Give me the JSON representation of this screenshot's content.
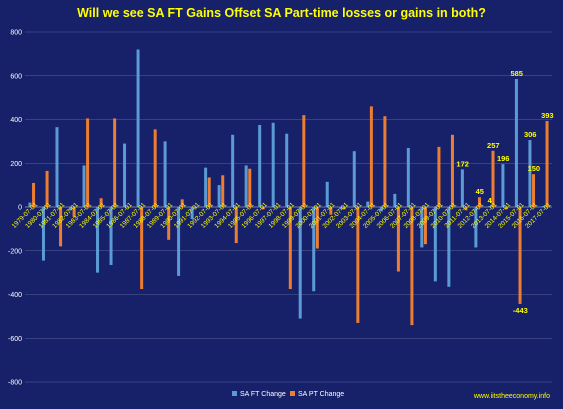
{
  "chart_data": {
    "type": "bar",
    "title": "Will we see SA FT Gains Offset SA Part-time losses or gains in both?",
    "source": "www.iitstheeconomy.info",
    "ylim": [
      -800,
      800
    ],
    "yticks": [
      800,
      600,
      400,
      200,
      0,
      -200,
      -400,
      -600,
      -800
    ],
    "grid": true,
    "legend_position": "bottom-center",
    "categories": [
      "1979-07-01",
      "1980-07-01",
      "1981-07-01",
      "1982-07-01",
      "1983-07-01",
      "1984-07-01",
      "1985-07-01",
      "1986-07-01",
      "1987-07-01",
      "1988-07-01",
      "1989-07-01",
      "1990-07-01",
      "1991-07-01",
      "1992-07-01",
      "1993-07-01",
      "1994-07-01",
      "1995-07-01",
      "1996-07-01",
      "1997-07-01",
      "1998-07-01",
      "1999-07-01",
      "2000-07-01",
      "2001-07-01",
      "2002-07-01",
      "2003-07-01",
      "2004-07-01",
      "2005-07-01",
      "2006-07-01",
      "2007-07-01",
      "2008-07-01",
      "2009-07-01",
      "2010-07-01",
      "2011-07-01",
      "2012-07-01",
      "2013-07-01",
      "2014-07-01",
      "2015-07-01",
      "2016-07-01",
      "2017-07-01"
    ],
    "series": [
      {
        "name": "SA FT Change",
        "color": "#5b9bd5",
        "values": [
          20,
          -245,
          365,
          -15,
          190,
          -300,
          -265,
          290,
          720,
          0,
          300,
          -315,
          -55,
          180,
          100,
          330,
          190,
          375,
          385,
          335,
          -510,
          -385,
          115,
          -10,
          255,
          25,
          -20,
          60,
          270,
          -185,
          -340,
          -365,
          172,
          -185,
          4,
          196,
          585,
          306,
          5
        ]
      },
      {
        "name": "SA PT Change",
        "color": "#ed7d31",
        "values": [
          110,
          165,
          -180,
          -45,
          405,
          40,
          405,
          0,
          -375,
          355,
          -150,
          35,
          -5,
          135,
          145,
          -165,
          175,
          -10,
          0,
          -375,
          420,
          -190,
          -35,
          -10,
          -530,
          460,
          415,
          -295,
          -540,
          -170,
          275,
          330,
          -15,
          45,
          257,
          -10,
          -443,
          150,
          393
        ]
      }
    ],
    "data_labels": [
      {
        "series": 0,
        "index": 32,
        "text": "172"
      },
      {
        "series": 1,
        "index": 33,
        "text": "45"
      },
      {
        "series": 0,
        "index": 34,
        "text": "4"
      },
      {
        "series": 1,
        "index": 34,
        "text": "257"
      },
      {
        "series": 0,
        "index": 35,
        "text": "196"
      },
      {
        "series": 0,
        "index": 36,
        "text": "585"
      },
      {
        "series": 1,
        "index": 36,
        "text": "-443"
      },
      {
        "series": 0,
        "index": 37,
        "text": "306"
      },
      {
        "series": 1,
        "index": 37,
        "text": "150"
      },
      {
        "series": 1,
        "index": 38,
        "text": "393"
      }
    ]
  }
}
